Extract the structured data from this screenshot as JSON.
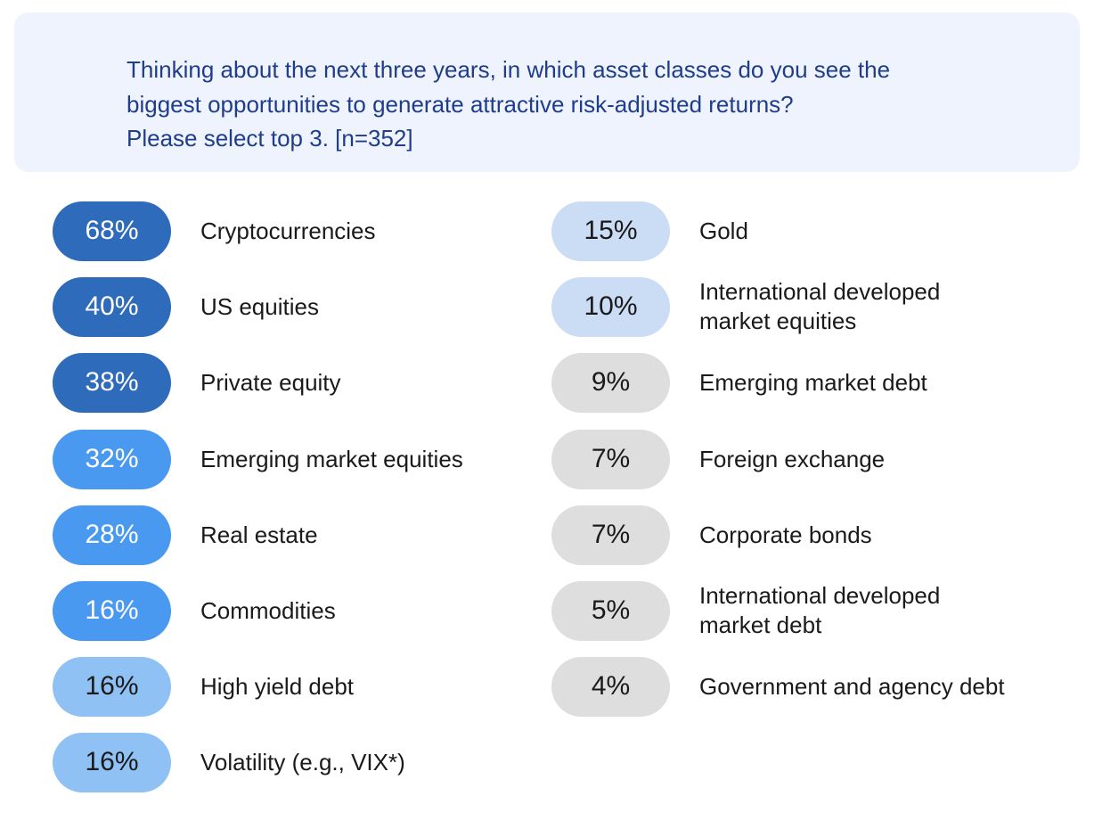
{
  "question": {
    "lines": [
      "Thinking about the next three years, in which asset classes do you see the",
      "biggest opportunities to generate attractive risk-adjusted returns?",
      "Please select top 3. [n=352]"
    ]
  },
  "colors": {
    "question_bg": "#eef3fd",
    "question_text": "#1f3d8a",
    "dark_blue": "#2e6bba",
    "mid_blue": "#4a99f0",
    "light_blue": "#8fc1f5",
    "pale_blue": "#cbdcf5",
    "gray": "#dedede"
  },
  "chart_data": {
    "type": "table",
    "title": "Thinking about the next three years, in which asset classes do you see the biggest opportunities to generate attractive risk-adjusted returns? Please select top 3. [n=352]",
    "unit": "%",
    "columns": [
      {
        "items": [
          {
            "value": 68,
            "display": "68%",
            "label": [
              "Cryptocurrencies"
            ],
            "tier": "dark_blue"
          },
          {
            "value": 40,
            "display": "40%",
            "label": [
              "US equities"
            ],
            "tier": "dark_blue"
          },
          {
            "value": 38,
            "display": "38%",
            "label": [
              "Private equity"
            ],
            "tier": "dark_blue"
          },
          {
            "value": 32,
            "display": "32%",
            "label": [
              "Emerging market equities"
            ],
            "tier": "mid_blue"
          },
          {
            "value": 28,
            "display": "28%",
            "label": [
              "Real estate"
            ],
            "tier": "mid_blue"
          },
          {
            "value": 16,
            "display": "16%",
            "label": [
              "Commodities"
            ],
            "tier": "mid_blue"
          },
          {
            "value": 16,
            "display": "16%",
            "label": [
              "High yield debt"
            ],
            "tier": "light_blue"
          },
          {
            "value": 16,
            "display": "16%",
            "label": [
              "Volatility (e.g., VIX*)"
            ],
            "tier": "light_blue"
          }
        ]
      },
      {
        "items": [
          {
            "value": 15,
            "display": "15%",
            "label": [
              "Gold"
            ],
            "tier": "pale_blue"
          },
          {
            "value": 10,
            "display": "10%",
            "label": [
              "International developed",
              "market equities"
            ],
            "tier": "pale_blue"
          },
          {
            "value": 9,
            "display": "9%",
            "label": [
              "Emerging market debt"
            ],
            "tier": "gray"
          },
          {
            "value": 7,
            "display": "7%",
            "label": [
              "Foreign exchange"
            ],
            "tier": "gray"
          },
          {
            "value": 7,
            "display": "7%",
            "label": [
              "Corporate bonds"
            ],
            "tier": "gray"
          },
          {
            "value": 5,
            "display": "5%",
            "label": [
              "International developed",
              "market debt"
            ],
            "tier": "gray"
          },
          {
            "value": 4,
            "display": "4%",
            "label": [
              "Government and agency debt"
            ],
            "tier": "gray"
          }
        ]
      }
    ]
  }
}
